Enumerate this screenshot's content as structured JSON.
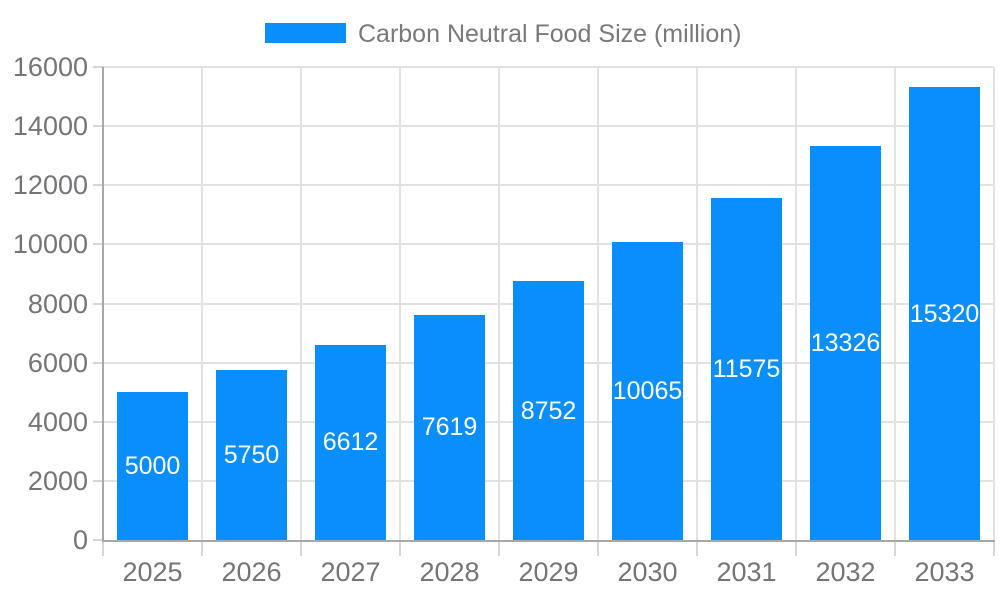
{
  "chart_data": {
    "type": "bar",
    "title": "Carbon Neutral Food Size (million)",
    "categories": [
      "2025",
      "2026",
      "2027",
      "2028",
      "2029",
      "2030",
      "2031",
      "2032",
      "2033"
    ],
    "series": [
      {
        "name": "Carbon Neutral Food Size (million)",
        "values": [
          5000,
          5750,
          6612,
          7619,
          8752,
          10065,
          11575,
          13326,
          15320
        ]
      }
    ],
    "xlabel": "",
    "ylabel": "",
    "ylim": [
      0,
      16000
    ],
    "yticks": [
      0,
      2000,
      4000,
      6000,
      8000,
      10000,
      12000,
      14000,
      16000
    ],
    "grid": true,
    "legend_position": "top-center",
    "value_label_position": "inside-center",
    "colors": {
      "bar": "#0a8ef9",
      "value_label": "#ffffff",
      "axis_text": "#737578",
      "title_text": "#77797c",
      "grid_line": "#e2e2e2",
      "tick_line": "#d6d6d6",
      "axis_line": "#a8a8a8",
      "background": "#ffffff"
    }
  }
}
